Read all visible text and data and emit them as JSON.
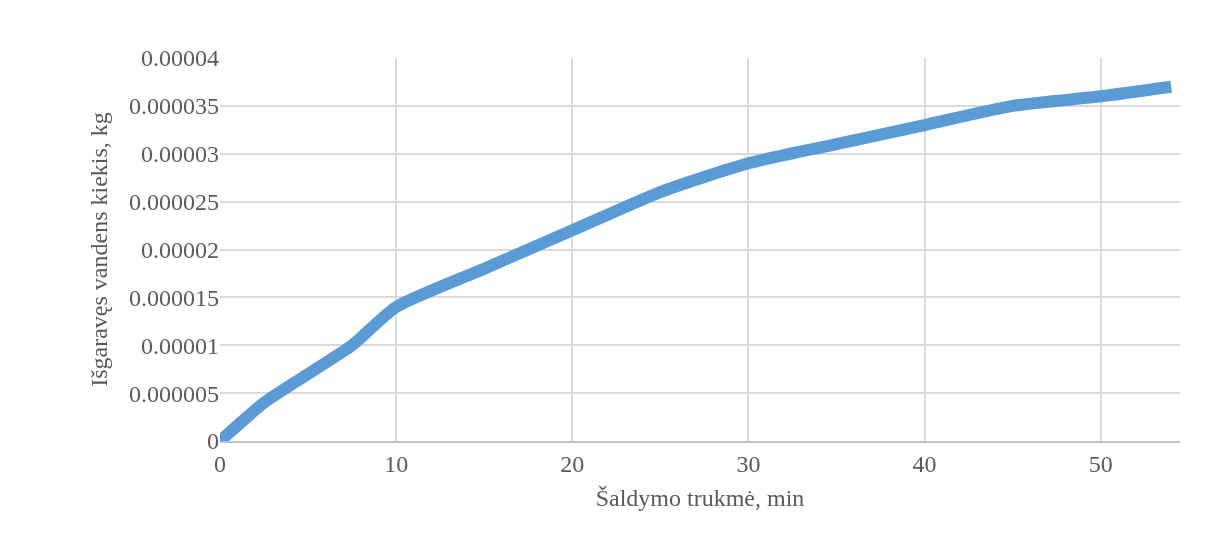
{
  "chart_data": {
    "type": "line",
    "xlabel": "Šaldymo trukmė, min",
    "ylabel": "Išgaravęs vandens kiekis, kg",
    "x": [
      0,
      2.5,
      5,
      7.5,
      10,
      15,
      20,
      25,
      30,
      35,
      40,
      45,
      50,
      54
    ],
    "series": [
      {
        "color": "#5b9bd5",
        "values": [
          0,
          4e-06,
          7e-06,
          1e-05,
          1.4e-05,
          1.8e-05,
          2.2e-05,
          2.6e-05,
          2.9e-05,
          3.1e-05,
          3.3e-05,
          3.5e-05,
          3.6e-05,
          3.7e-05
        ]
      }
    ],
    "xlim": [
      0,
      54.5
    ],
    "xticks": [
      0,
      10,
      20,
      30,
      40,
      50
    ],
    "ylim": [
      0,
      4e-05
    ],
    "yticks": [
      0,
      {
        "value": 5e-06,
        "label": "0.000005"
      },
      {
        "value": 1e-05,
        "label": "0.00001"
      },
      {
        "value": 1.5e-05,
        "label": "0.000015"
      },
      {
        "value": 2e-05,
        "label": "0.00002"
      },
      {
        "value": 2.5e-05,
        "label": "0.000025"
      },
      {
        "value": 3e-05,
        "label": "0.00003"
      },
      {
        "value": 3.5e-05,
        "label": "0.000035"
      },
      {
        "value": 4e-05,
        "label": "0.00004"
      }
    ],
    "grid": true,
    "marker": "none",
    "line_style": "solid"
  }
}
